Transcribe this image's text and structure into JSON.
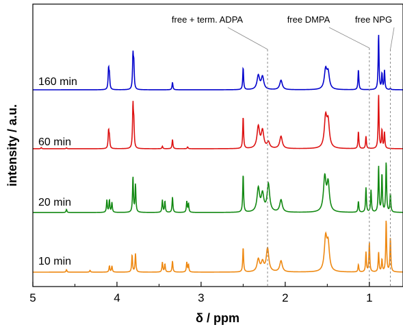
{
  "chart_data": {
    "type": "line",
    "title": "",
    "xlabel": "δ  /  ppm",
    "ylabel": "intensity / a.u.",
    "xlim": [
      5,
      0.6
    ],
    "x_reversed": true,
    "ylim": [
      0,
      1
    ],
    "grid": false,
    "x_ticks": [
      {
        "value": 5,
        "label": "5"
      },
      {
        "value": 4,
        "label": "4"
      },
      {
        "value": 3,
        "label": "3"
      },
      {
        "value": 2,
        "label": "2"
      },
      {
        "value": 1,
        "label": "1"
      }
    ],
    "series": [
      {
        "name": "160 min",
        "color": "#0000cc",
        "peaks": [
          [
            4.1,
            0.32
          ],
          [
            4.09,
            0.22
          ],
          [
            3.81,
            0.52
          ],
          [
            3.8,
            0.38
          ],
          [
            3.34,
            0.12
          ],
          [
            2.5,
            0.35
          ],
          [
            2.32,
            0.22
          ],
          [
            2.27,
            0.2
          ],
          [
            2.05,
            0.15
          ],
          [
            1.52,
            0.3
          ],
          [
            1.49,
            0.25
          ],
          [
            1.13,
            0.32
          ],
          [
            0.89,
            0.88
          ],
          [
            0.85,
            0.25
          ],
          [
            0.82,
            0.3
          ],
          [
            0.75,
            0.02
          ]
        ]
      },
      {
        "name": "60 min",
        "color": "#dd1111",
        "peaks": [
          [
            4.1,
            0.28
          ],
          [
            4.09,
            0.18
          ],
          [
            3.81,
            0.68
          ],
          [
            3.8,
            0.38
          ],
          [
            3.46,
            0.04
          ],
          [
            3.34,
            0.15
          ],
          [
            3.16,
            0.03
          ],
          [
            2.5,
            0.52
          ],
          [
            2.32,
            0.35
          ],
          [
            2.27,
            0.28
          ],
          [
            2.2,
            0.1
          ],
          [
            2.05,
            0.2
          ],
          [
            1.52,
            0.48
          ],
          [
            1.49,
            0.4
          ],
          [
            1.13,
            0.28
          ],
          [
            1.04,
            0.2
          ],
          [
            0.89,
            0.88
          ],
          [
            0.85,
            0.3
          ],
          [
            0.82,
            0.26
          ],
          [
            4.9,
            0.02
          ],
          [
            4.6,
            0.015
          ]
        ]
      },
      {
        "name": "20 min",
        "color": "#118811",
        "peaks": [
          [
            4.6,
            0.05
          ],
          [
            4.12,
            0.2
          ],
          [
            4.09,
            0.2
          ],
          [
            4.06,
            0.16
          ],
          [
            3.81,
            0.58
          ],
          [
            3.78,
            0.45
          ],
          [
            3.46,
            0.2
          ],
          [
            3.43,
            0.18
          ],
          [
            3.34,
            0.25
          ],
          [
            3.17,
            0.18
          ],
          [
            3.15,
            0.14
          ],
          [
            2.5,
            0.62
          ],
          [
            2.32,
            0.38
          ],
          [
            2.27,
            0.28
          ],
          [
            2.2,
            0.45
          ],
          [
            2.05,
            0.2
          ],
          [
            1.53,
            0.55
          ],
          [
            1.49,
            0.45
          ],
          [
            1.13,
            0.18
          ],
          [
            1.04,
            0.4
          ],
          [
            0.98,
            0.36
          ],
          [
            0.89,
            0.75
          ],
          [
            0.85,
            0.62
          ],
          [
            0.8,
            0.82
          ],
          [
            0.75,
            0.3
          ]
        ]
      },
      {
        "name": "10 min",
        "color": "#ee8811",
        "peaks": [
          [
            4.6,
            0.04
          ],
          [
            4.32,
            0.03
          ],
          [
            4.09,
            0.1
          ],
          [
            4.06,
            0.1
          ],
          [
            3.82,
            0.28
          ],
          [
            3.78,
            0.3
          ],
          [
            3.46,
            0.16
          ],
          [
            3.43,
            0.13
          ],
          [
            3.34,
            0.18
          ],
          [
            3.17,
            0.16
          ],
          [
            3.15,
            0.12
          ],
          [
            2.5,
            0.4
          ],
          [
            2.32,
            0.2
          ],
          [
            2.27,
            0.15
          ],
          [
            2.21,
            0.38
          ],
          [
            2.05,
            0.18
          ],
          [
            1.52,
            0.52
          ],
          [
            1.49,
            0.42
          ],
          [
            1.13,
            0.12
          ],
          [
            1.04,
            0.32
          ],
          [
            1.0,
            0.48
          ],
          [
            0.89,
            0.32
          ],
          [
            0.85,
            0.2
          ],
          [
            0.8,
            0.85
          ],
          [
            0.75,
            0.55
          ]
        ]
      }
    ],
    "reference_lines": [
      {
        "label": "free + term. ADPA",
        "x": 2.21
      },
      {
        "label": "free DMPA",
        "x": 1.0
      },
      {
        "label": "free NPG",
        "x": 0.75
      }
    ]
  }
}
